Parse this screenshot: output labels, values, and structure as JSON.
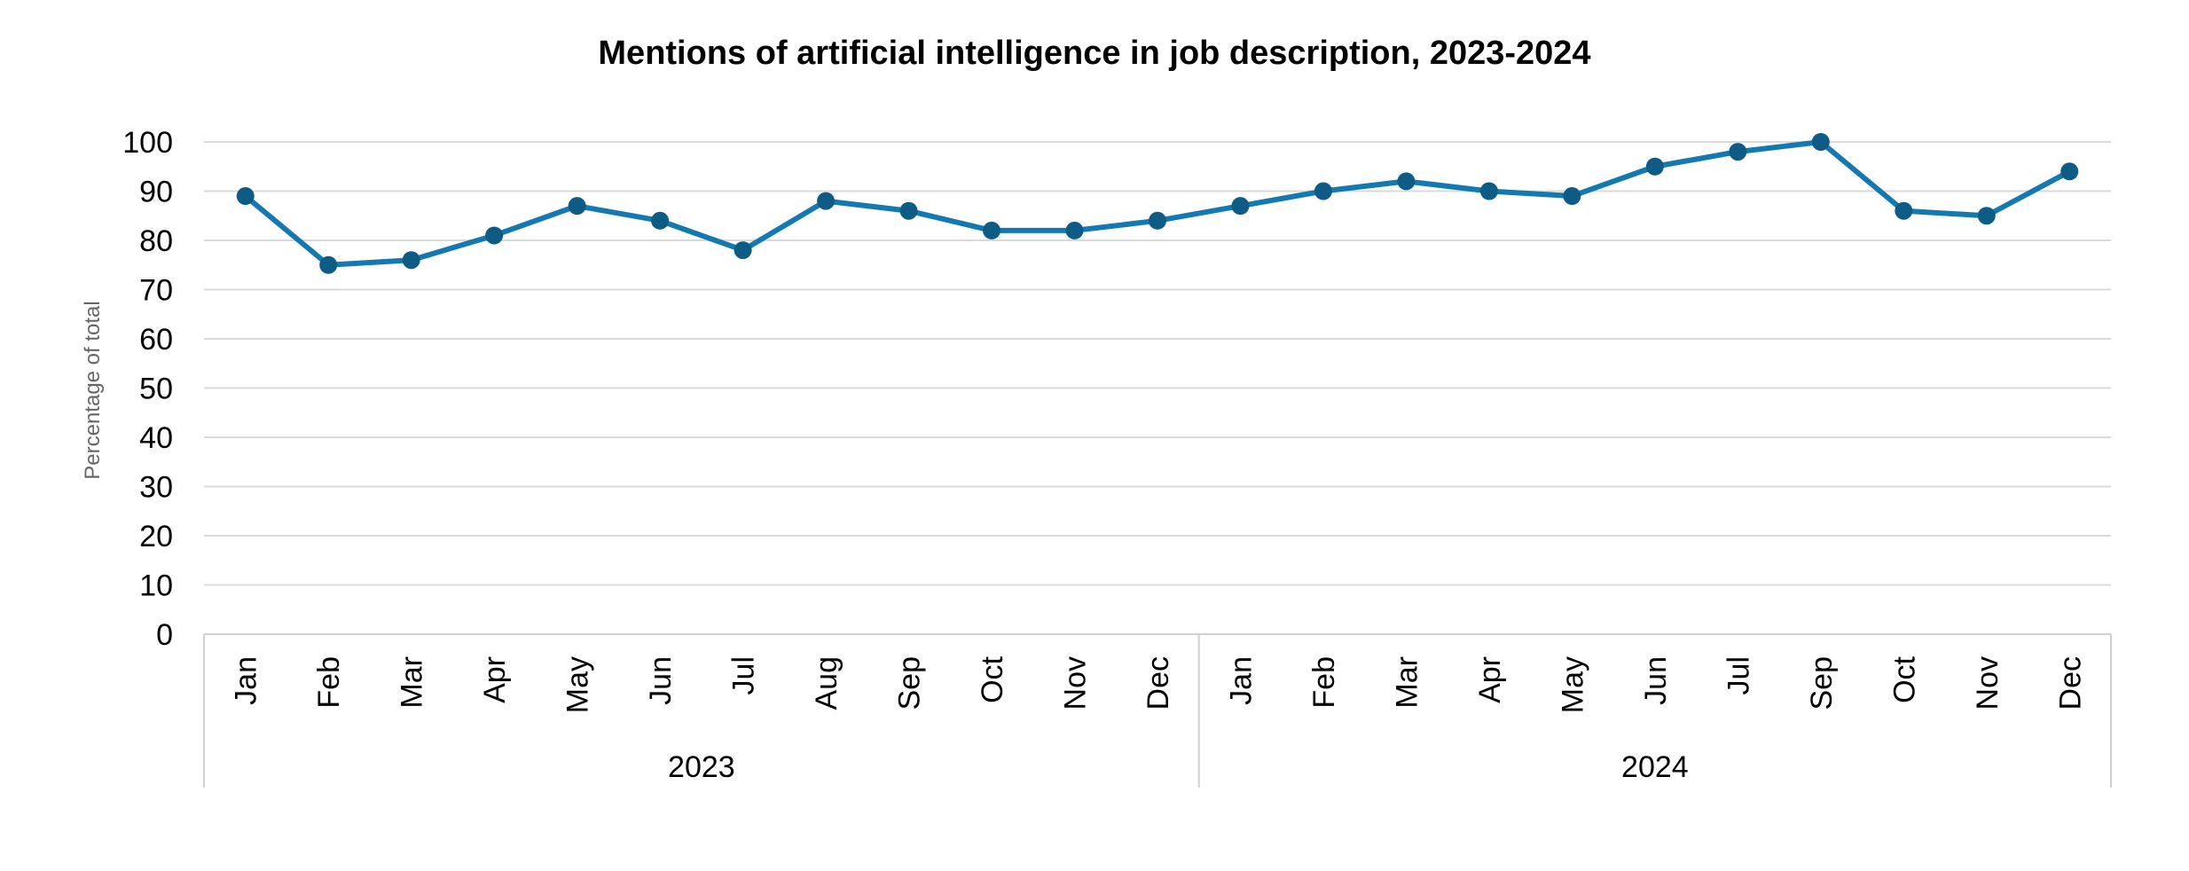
{
  "chart_data": {
    "type": "line",
    "title": "Mentions of artificial intelligence in job description, 2023-2024",
    "xlabel": "",
    "ylabel": "Percentage of total",
    "ylim": [
      0,
      100
    ],
    "yticks": [
      0,
      10,
      20,
      30,
      40,
      50,
      60,
      70,
      80,
      90,
      100
    ],
    "grid": true,
    "legend": "none",
    "categories": [
      "Jan",
      "Feb",
      "Mar",
      "Apr",
      "May",
      "Jun",
      "Jul",
      "Aug",
      "Sep",
      "Oct",
      "Nov",
      "Dec",
      "Jan",
      "Feb",
      "Mar",
      "Apr",
      "May",
      "Jun",
      "Jul",
      "Sep",
      "Oct",
      "Nov",
      "Dec"
    ],
    "groups": [
      {
        "label": "2023",
        "count": 12
      },
      {
        "label": "2024",
        "count": 11
      }
    ],
    "series": [
      {
        "values": [
          89,
          75,
          76,
          81,
          87,
          84,
          78,
          88,
          86,
          82,
          82,
          84,
          87,
          90,
          92,
          90,
          89,
          95,
          98,
          100,
          86,
          85,
          94
        ]
      }
    ],
    "colors": {
      "line": "#1479b1",
      "marker": "#0e5b85",
      "grid": "#d9d9d9",
      "axis": "#d0d0d0"
    }
  }
}
